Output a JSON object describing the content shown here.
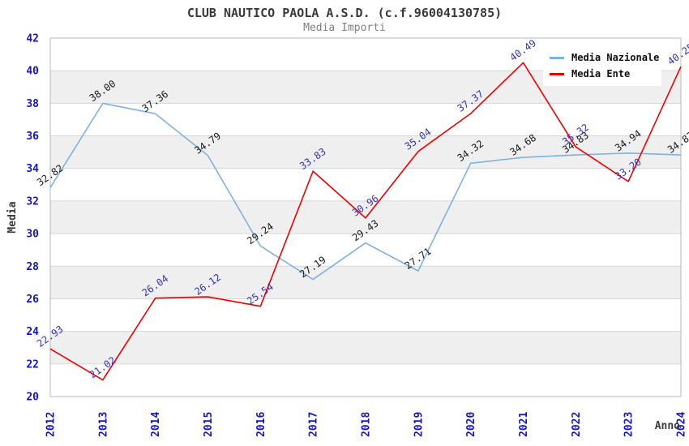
{
  "header": {
    "title": "CLUB NAUTICO PAOLA A.S.D. (c.f.96004130785)",
    "subtitle": "Media Importi"
  },
  "chart_data": {
    "type": "line",
    "title": "CLUB NAUTICO PAOLA A.S.D. (c.f.96004130785)",
    "subtitle": "Media Importi",
    "categories": [
      "2012",
      "2013",
      "2014",
      "2015",
      "2016",
      "2017",
      "2018",
      "2019",
      "2020",
      "2021",
      "2022",
      "2023",
      "2024"
    ],
    "series": [
      {
        "name": "Media Nazionale",
        "color": "#7db1e3",
        "label_color": "#1a1a1a",
        "values": [
          32.82,
          38.0,
          37.36,
          34.79,
          29.24,
          27.19,
          29.43,
          27.71,
          34.32,
          34.68,
          34.83,
          34.94,
          34.83
        ]
      },
      {
        "name": "Media Ente",
        "color": "#ee0000",
        "label_color": "#3333bb",
        "values": [
          22.93,
          21.02,
          26.04,
          26.12,
          25.54,
          33.83,
          30.96,
          35.04,
          37.37,
          40.49,
          35.32,
          33.2,
          40.25
        ]
      }
    ],
    "xlabel": "Anno",
    "ylabel": "Media",
    "ylim": [
      20,
      42
    ],
    "ytick_step": 2,
    "grid": "horizontal-gridlines-with-alternating-bands",
    "legend_position": "top-right",
    "colors": {
      "tick_label": "#1414cd",
      "band": "#efefef",
      "gridline": "#d6d6d6",
      "border": "#b8b8b8",
      "axis_title": "#3a3a3a"
    }
  }
}
